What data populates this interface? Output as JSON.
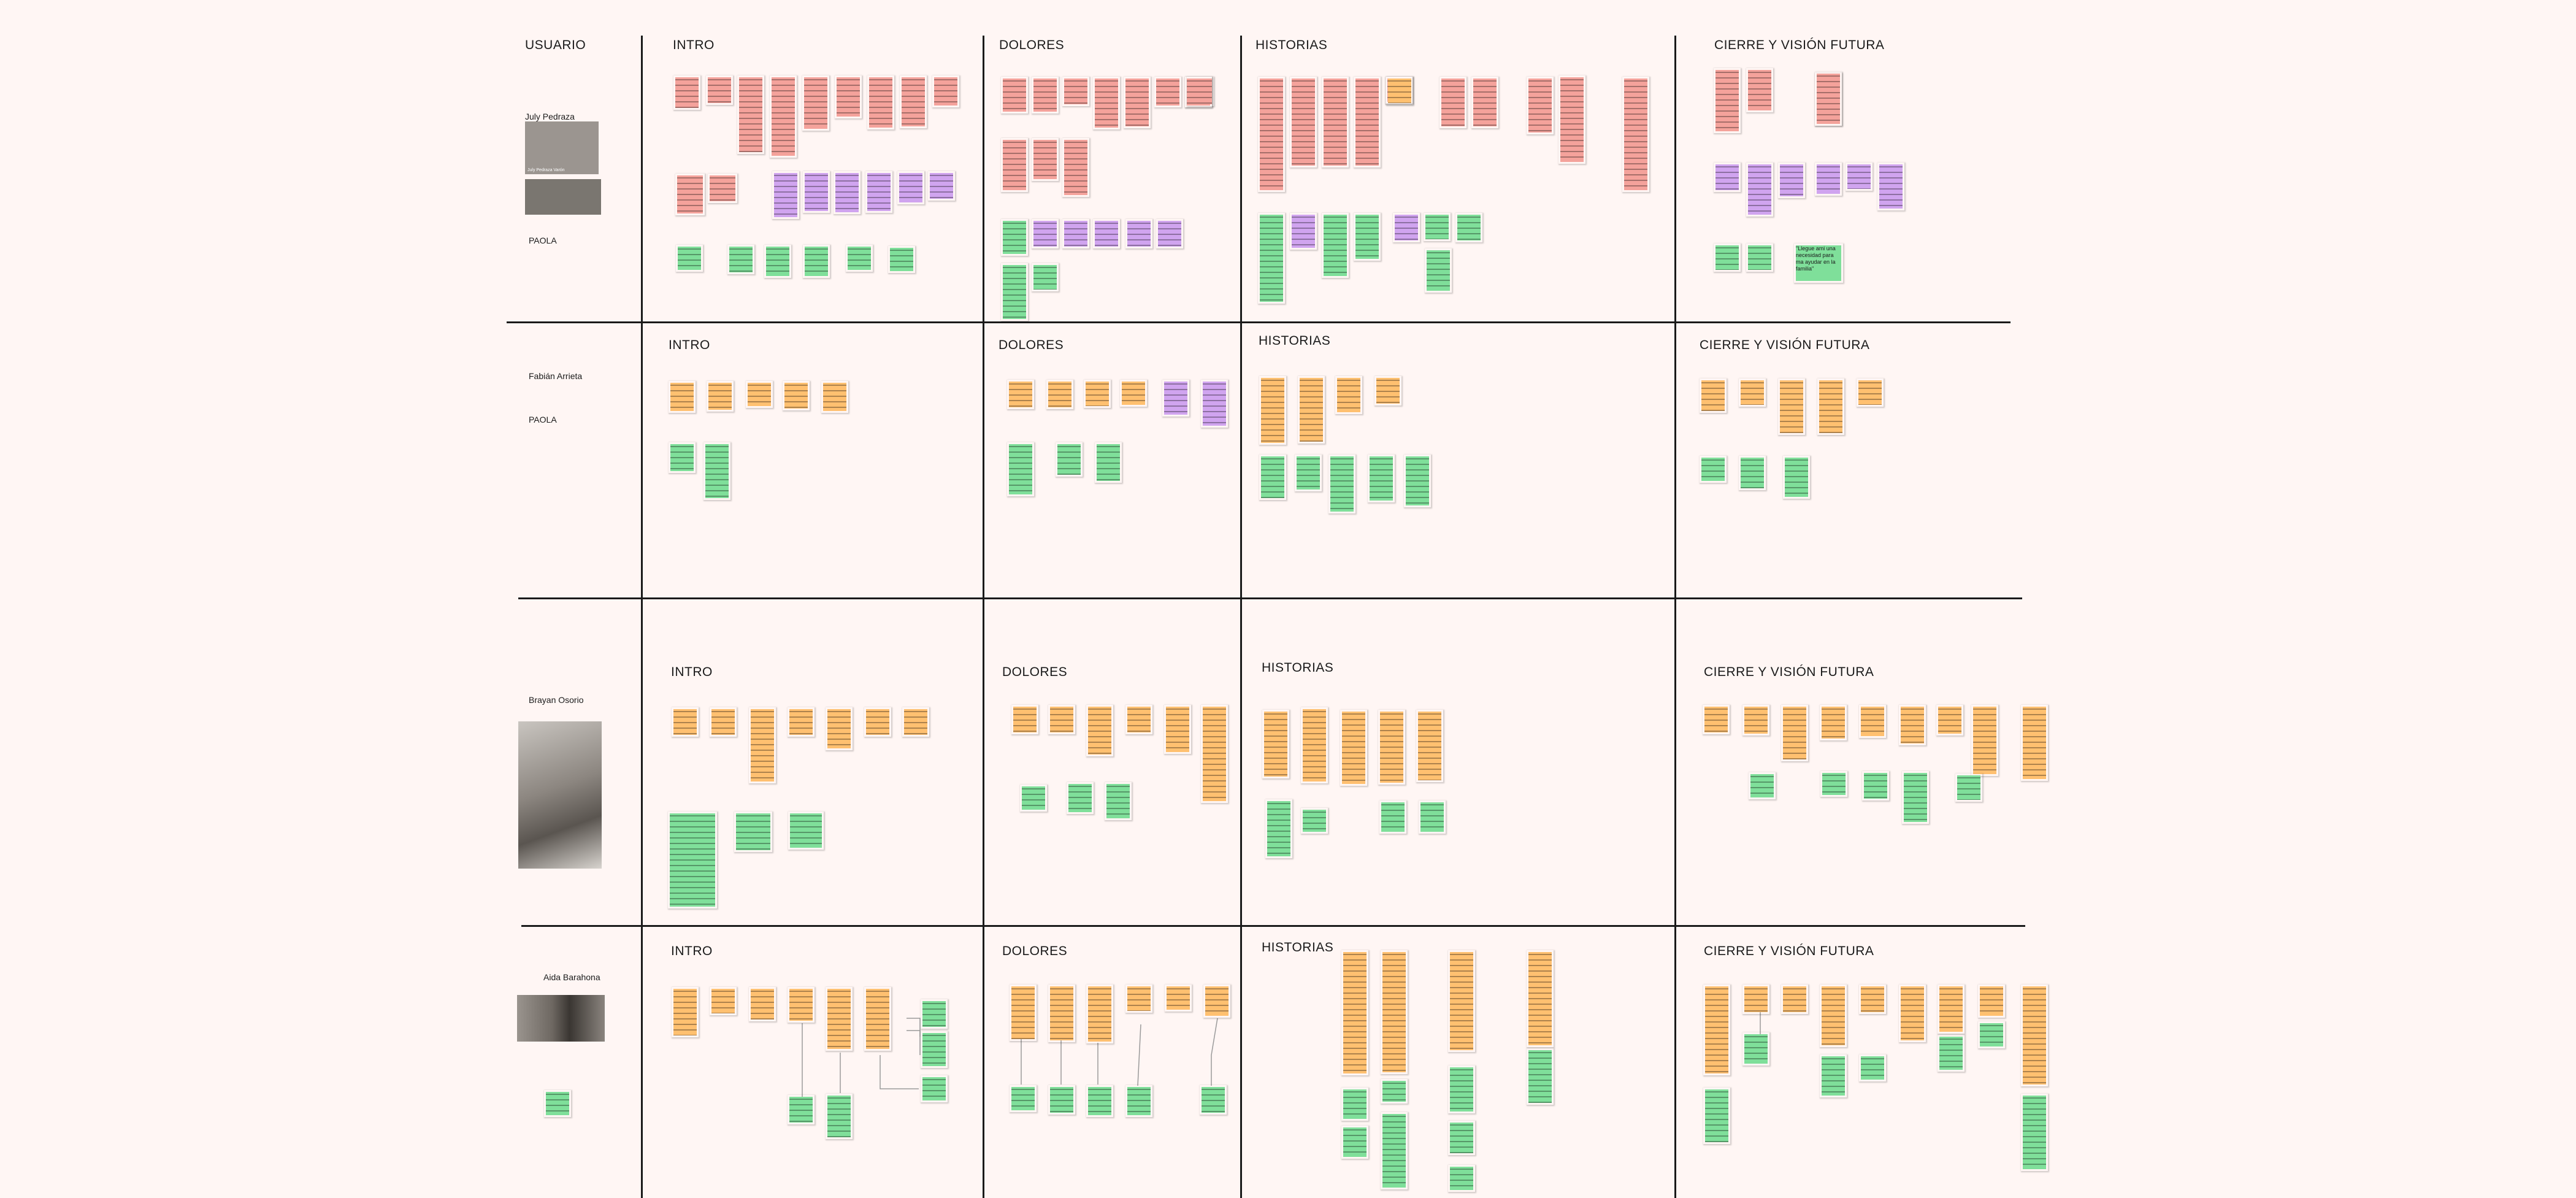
{
  "board": {
    "columns": [
      "USUARIO",
      "INTRO",
      "DOLORES",
      "HISTORIAS",
      "CIERRE Y VISIÓN FUTURA"
    ],
    "rows": [
      {
        "user": "July Pedraza",
        "interviewer": "PAOLA",
        "photo_label": "July Pedraza Varón",
        "sections": [
          "INTRO",
          "DOLORES",
          "HISTORIAS",
          "CIERRE Y VISIÓN FUTURA"
        ],
        "quote": "\"Llegue ami una necesidad para ma ayudar en la familia\""
      },
      {
        "user": "Fabián Arrieta",
        "interviewer": "PAOLA",
        "sections": [
          "INTRO",
          "DOLORES",
          "HISTORIAS",
          "CIERRE Y VISIÓN FUTURA"
        ]
      },
      {
        "user": "Brayan Osorio",
        "sections": [
          "INTRO",
          "DOLORES",
          "HISTORIAS",
          "CIERRE Y VISIÓN FUTURA"
        ]
      },
      {
        "user": "Aida Barahona",
        "sections": [
          "INTRO",
          "DOLORES",
          "HISTORIAS",
          "CIERRE Y VISIÓN FUTURA"
        ]
      }
    ]
  },
  "colors": {
    "background": "#fff6f4",
    "pink": "#f4a29b",
    "orange": "#ffc070",
    "green": "#7fdf9a",
    "purple": "#d0a4ef",
    "lines": "#1a1a1a"
  }
}
